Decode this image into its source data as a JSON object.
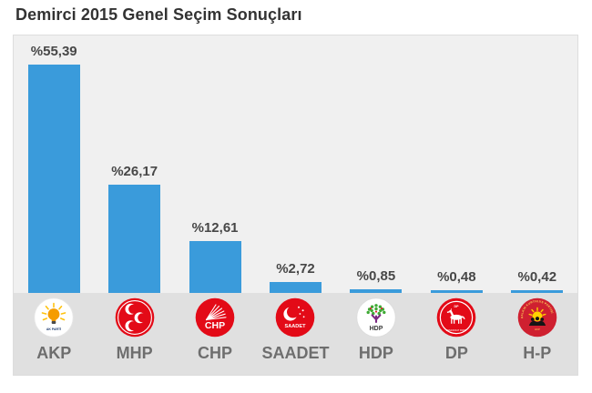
{
  "page": {
    "title": "Demirci 2015 Genel Seçim Sonuçları"
  },
  "chart_data": {
    "type": "bar",
    "title": "Demirci 2015 Genel Seçim Sonuçları",
    "categories": [
      "AKP",
      "MHP",
      "CHP",
      "SAADET",
      "HDP",
      "DP",
      "H-P"
    ],
    "values": [
      55.39,
      26.17,
      12.61,
      2.72,
      0.85,
      0.48,
      0.42
    ],
    "value_labels": [
      "%55,39",
      "%26,17",
      "%12,61",
      "%2,72",
      "%0,85",
      "%0,48",
      "%0,42"
    ],
    "ylim": [
      0,
      55.39
    ],
    "grid": false,
    "legend": "none",
    "bar_color": "#3a9bdb",
    "parties": [
      {
        "id": "akp",
        "label": "AKP",
        "logo_icon": "akp-lightbulb-logo",
        "logo_text": "AK PARTİ"
      },
      {
        "id": "mhp",
        "label": "MHP",
        "logo_icon": "mhp-three-crescents-logo",
        "logo_text": ""
      },
      {
        "id": "chp",
        "label": "CHP",
        "logo_icon": "chp-six-arrows-logo",
        "logo_text": "CHP"
      },
      {
        "id": "saadet",
        "label": "SAADET",
        "logo_icon": "saadet-crescent-stars-logo",
        "logo_text": "SAADET"
      },
      {
        "id": "hdp",
        "label": "HDP",
        "logo_icon": "hdp-tree-logo",
        "logo_text": "HDP"
      },
      {
        "id": "dp",
        "label": "DP",
        "logo_icon": "dp-white-horse-logo",
        "logo_text": "DP",
        "logo_subtext": "DEMOKRAT PARTİ"
      },
      {
        "id": "hkp",
        "label": "H-P",
        "logo_icon": "hkp-sun-workers-logo",
        "logo_text": "HALKIN KURTULUŞ PARTİSİ"
      }
    ]
  },
  "colors": {
    "bar": "#3a9bdb",
    "chart_background": "#f0f0f0",
    "logo_strip_background": "#e0e0e0",
    "title_text": "#333333",
    "value_text": "#474747",
    "party_text": "#6e6e6e"
  }
}
